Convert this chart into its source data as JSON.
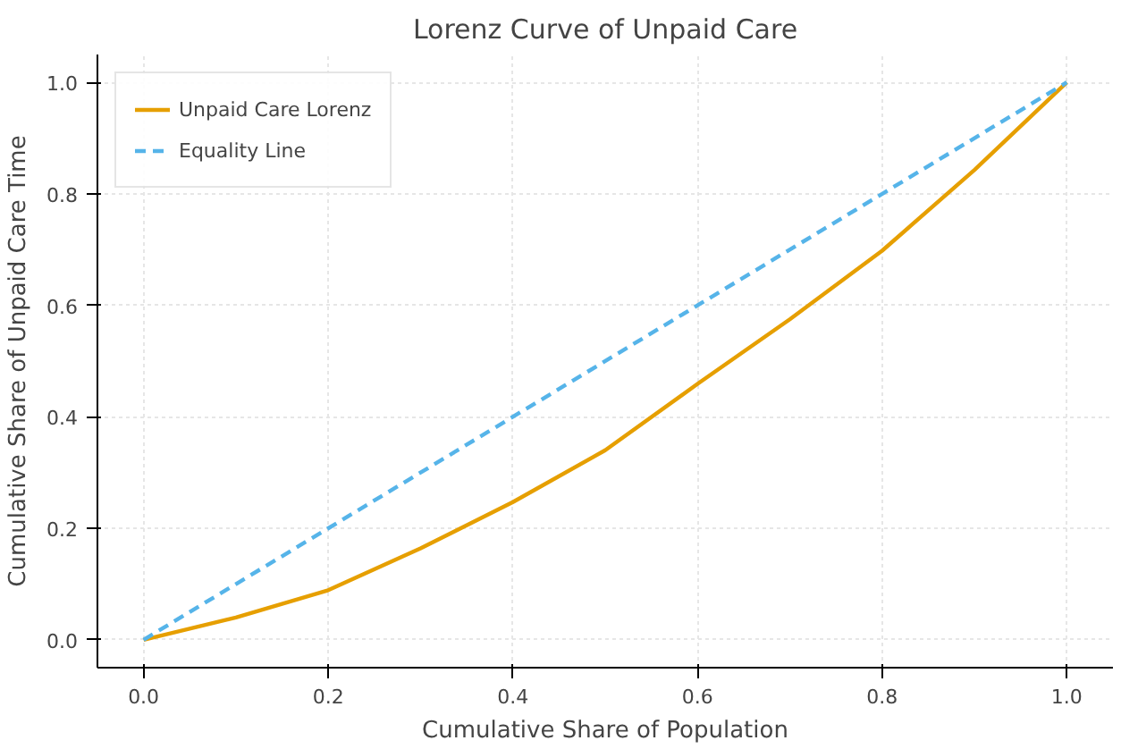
{
  "chart_data": {
    "type": "line",
    "title": "Lorenz Curve of Unpaid Care",
    "xlabel": "Cumulative Share of Population",
    "ylabel": "Cumulative Share of Unpaid Care Time",
    "x": [
      0,
      0.1,
      0.2,
      0.3,
      0.4,
      0.5,
      0.6,
      0.7,
      0.8,
      0.9,
      1.0
    ],
    "series": [
      {
        "name": "Unpaid Care Lorenz",
        "color": "#e69f00",
        "values": [
          0,
          0.04,
          0.089,
          0.164,
          0.247,
          0.34,
          0.459,
          0.575,
          0.698,
          0.843,
          1.0
        ],
        "line_style": "solid"
      },
      {
        "name": "Equality Line",
        "color": "#56b4e9",
        "x": [
          0,
          1
        ],
        "values": [
          0,
          1
        ],
        "line_style": "dashed"
      }
    ],
    "xlim": [
      -0.05,
      1.05
    ],
    "ylim": [
      -0.05,
      1.05
    ],
    "xticks": [
      {
        "value": 0,
        "label": "0.0"
      },
      {
        "value": 0.2,
        "label": "0.2"
      },
      {
        "value": 0.4,
        "label": "0.4"
      },
      {
        "value": 0.6,
        "label": "0.6"
      },
      {
        "value": 0.8,
        "label": "0.8"
      },
      {
        "value": 1.0,
        "label": "1.0"
      }
    ],
    "yticks": [
      {
        "value": 0,
        "label": "0.0"
      },
      {
        "value": 0.2,
        "label": "0.2"
      },
      {
        "value": 0.4,
        "label": "0.4"
      },
      {
        "value": 0.6,
        "label": "0.6"
      },
      {
        "value": 0.8,
        "label": "0.8"
      },
      {
        "value": 1.0,
        "label": "1.0"
      }
    ],
    "grid": true,
    "legend": "top left"
  }
}
